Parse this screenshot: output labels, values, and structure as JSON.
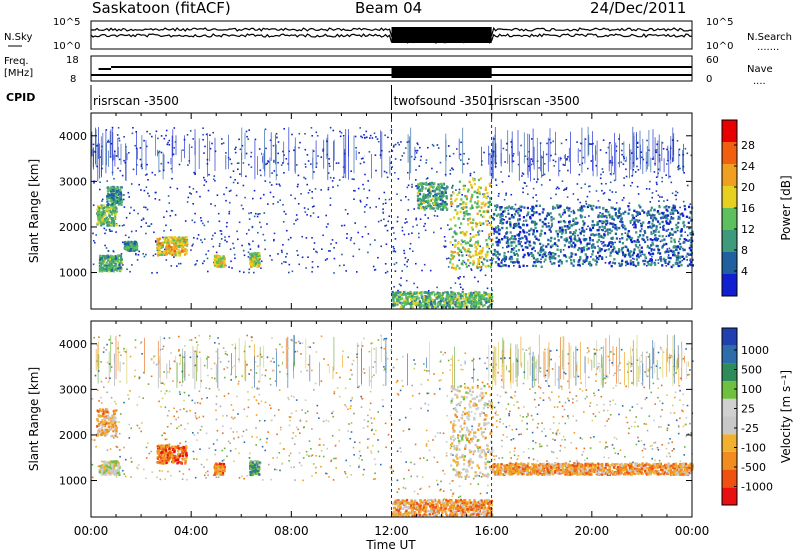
{
  "header": {
    "title": "Saskatoon (fitACF)",
    "beam": "Beam 04",
    "date": "24/Dec/2011"
  },
  "noise_panel": {
    "left_label": "N.Sky",
    "right_label": "N.Search",
    "left_ticks": [
      "10^5",
      "10^0"
    ],
    "right_ticks": [
      "10^5",
      "10^0"
    ],
    "right_dots": "......."
  },
  "freq_panel": {
    "left_label_1": "Freq.",
    "left_label_2": "[MHz]",
    "left_ticks": [
      "18",
      "8"
    ],
    "right_label": "Nave",
    "right_ticks": [
      "60",
      "0"
    ],
    "right_dots": "...."
  },
  "cpid": {
    "label": "CPID",
    "segments": [
      {
        "name": "risrscan -3500",
        "start": 0,
        "end": 12
      },
      {
        "name": "twofsound -3501",
        "start": 12,
        "end": 16
      },
      {
        "name": "risrscan -3500",
        "start": 16,
        "end": 24
      }
    ]
  },
  "colors": {
    "power": [
      "#1020d0",
      "#2060a0",
      "#3d9a7a",
      "#5dc05d",
      "#e8d020",
      "#f0a020",
      "#f06010",
      "#e80000"
    ],
    "velocity": [
      "#e81010",
      "#f05010",
      "#f08c20",
      "#f0b030",
      "#c8c8c8",
      "#d0d0d0",
      "#70c040",
      "#2e8c5a",
      "#2d6eaa",
      "#2040b0"
    ]
  },
  "chart_data": [
    {
      "type": "heatmap",
      "panel": "power",
      "xlabel": "Time UT",
      "ylabel": "Slant Range [km]",
      "xlim": [
        0,
        24
      ],
      "ylim": [
        200,
        4500
      ],
      "x_ticks": [
        "00:00",
        "04:00",
        "08:00",
        "12:00",
        "16:00",
        "20:00",
        "00:00"
      ],
      "y_ticks": [
        1000,
        2000,
        3000,
        4000
      ],
      "colorbar": {
        "label": "Power [dB]",
        "tick_labels": [
          "28",
          "24",
          "20",
          "16",
          "12",
          "8",
          "4"
        ],
        "range": [
          0,
          30
        ]
      },
      "regions": [
        {
          "t0": 0.3,
          "t1": 1.2,
          "r0": 1050,
          "r1": 1400,
          "level": 0.35
        },
        {
          "t0": 0.2,
          "t1": 1.0,
          "r0": 2050,
          "r1": 2500,
          "level": 0.45
        },
        {
          "t0": 0.6,
          "t1": 1.2,
          "r0": 2500,
          "r1": 2900,
          "level": 0.3
        },
        {
          "t0": 1.3,
          "t1": 1.8,
          "r0": 1500,
          "r1": 1700,
          "level": 0.3
        },
        {
          "t0": 2.6,
          "t1": 3.8,
          "r0": 1400,
          "r1": 1800,
          "level": 0.6
        },
        {
          "t0": 4.9,
          "t1": 5.3,
          "r0": 1150,
          "r1": 1400,
          "level": 0.55
        },
        {
          "t0": 6.3,
          "t1": 6.7,
          "r0": 1150,
          "r1": 1450,
          "level": 0.5
        },
        {
          "t0": 12.0,
          "t1": 16.0,
          "r0": 250,
          "r1": 600,
          "level": 0.4
        },
        {
          "t0": 13.0,
          "t1": 14.2,
          "r0": 2400,
          "r1": 3000,
          "level": 0.35
        },
        {
          "t0": 14.3,
          "t1": 16.0,
          "r0": 1100,
          "r1": 3100,
          "level": 0.5
        },
        {
          "t0": 16.0,
          "t1": 24.0,
          "r0": 1150,
          "r1": 2500,
          "level": 0.2
        }
      ]
    },
    {
      "type": "heatmap",
      "panel": "velocity",
      "xlabel": "Time UT",
      "ylabel": "Slant Range [km]",
      "xlim": [
        0,
        24
      ],
      "ylim": [
        200,
        4500
      ],
      "x_ticks": [
        "00:00",
        "04:00",
        "08:00",
        "12:00",
        "16:00",
        "20:00",
        "00:00"
      ],
      "y_ticks": [
        1000,
        2000,
        3000,
        4000
      ],
      "colorbar": {
        "label": "Velocity [m s⁻¹]",
        "tick_labels": [
          "1000",
          "500",
          "100",
          "25",
          "-25",
          "-100",
          "-500",
          "-1000"
        ],
        "range": [
          -1000,
          1000
        ]
      },
      "regions": [
        {
          "t0": 0.2,
          "t1": 1.0,
          "r0": 2000,
          "r1": 2600,
          "level": 0.35
        },
        {
          "t0": 0.3,
          "t1": 1.1,
          "r0": 1150,
          "r1": 1450,
          "level": 0.5
        },
        {
          "t0": 2.6,
          "t1": 3.8,
          "r0": 1400,
          "r1": 1800,
          "level": 0.2
        },
        {
          "t0": 4.9,
          "t1": 5.3,
          "r0": 1150,
          "r1": 1400,
          "level": 0.25
        },
        {
          "t0": 6.3,
          "t1": 6.7,
          "r0": 1150,
          "r1": 1450,
          "level": 0.7
        },
        {
          "t0": 12.0,
          "t1": 16.0,
          "r0": 250,
          "r1": 600,
          "level": 0.3
        },
        {
          "t0": 14.3,
          "t1": 16.0,
          "r0": 1100,
          "r1": 3100,
          "level": 0.45
        },
        {
          "t0": 16.0,
          "t1": 24.0,
          "r0": 1150,
          "r1": 1400,
          "level": 0.3
        }
      ]
    }
  ]
}
